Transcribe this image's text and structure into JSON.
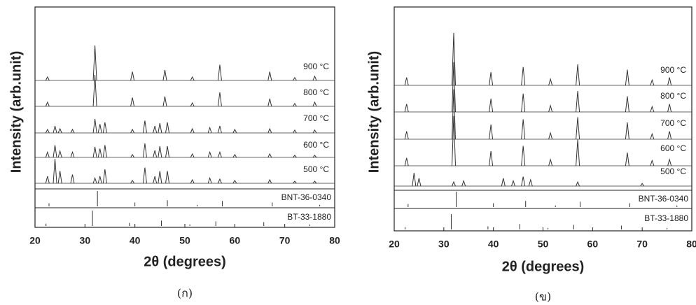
{
  "chart_data": [
    {
      "type": "spectrum",
      "caption": "(ก)",
      "xlabel": "2θ (degrees)",
      "ylabel": "Intensity (arb.unit)",
      "xlim": [
        20,
        80
      ],
      "xticks": [
        20,
        30,
        40,
        50,
        60,
        70,
        80
      ],
      "color": "#333333",
      "series": [
        {
          "name": "900 °C",
          "x": [
            22.5,
            32,
            39.5,
            46,
            51.5,
            57,
            67,
            72,
            76
          ],
          "values": [
            10,
            100,
            25,
            30,
            10,
            45,
            25,
            8,
            12
          ]
        },
        {
          "name": "800 °C",
          "x": [
            22.5,
            32,
            39.5,
            46,
            51.5,
            57,
            67,
            72,
            76
          ],
          "values": [
            12,
            90,
            25,
            28,
            10,
            40,
            22,
            8,
            12
          ]
        },
        {
          "name": "700 °C",
          "x": [
            22.5,
            24,
            25,
            27.5,
            32,
            33,
            34,
            39.5,
            42,
            44,
            45,
            46.5,
            51.5,
            55,
            57,
            60,
            67,
            72,
            76
          ],
          "values": [
            10,
            20,
            12,
            10,
            40,
            25,
            30,
            10,
            35,
            20,
            28,
            30,
            12,
            15,
            20,
            10,
            12,
            8,
            8
          ]
        },
        {
          "name": "600 °C",
          "x": [
            22.5,
            24,
            25,
            27.5,
            32,
            33,
            34,
            39.5,
            42,
            44,
            45,
            46.5,
            51.5,
            55,
            57,
            60,
            67,
            72,
            76
          ],
          "values": [
            15,
            35,
            18,
            15,
            30,
            25,
            35,
            8,
            40,
            20,
            32,
            32,
            10,
            15,
            15,
            8,
            10,
            6,
            6
          ]
        },
        {
          "name": "500 °C",
          "x": [
            22.5,
            24,
            25,
            27.5,
            32,
            33,
            34,
            39.5,
            42,
            44,
            45,
            46.5,
            51.5,
            55,
            57,
            60,
            67,
            72,
            76
          ],
          "values": [
            20,
            70,
            35,
            25,
            15,
            20,
            40,
            8,
            45,
            20,
            35,
            35,
            10,
            15,
            12,
            8,
            10,
            6,
            6
          ]
        }
      ],
      "references": [
        {
          "name": "BNT-36-0340",
          "x": [
            22.8,
            32.5,
            40,
            46.5,
            52.5,
            57.5,
            67.5,
            77
          ],
          "values": [
            20,
            100,
            25,
            40,
            10,
            35,
            25,
            10
          ]
        },
        {
          "name": "BT-33-1880",
          "x": [
            22.2,
            31.5,
            38.9,
            45.3,
            51,
            56.2,
            65.8,
            75
          ],
          "values": [
            15,
            100,
            20,
            35,
            10,
            30,
            25,
            10
          ]
        }
      ]
    },
    {
      "type": "spectrum",
      "caption": "(ข)",
      "xlabel": "2θ (degrees)",
      "ylabel": "Intensity (arb.unit)",
      "xlim": [
        20,
        80
      ],
      "xticks": [
        20,
        30,
        40,
        50,
        60,
        70,
        80
      ],
      "color": "#333333",
      "series": [
        {
          "name": "900 °C",
          "x": [
            22.5,
            32,
            39.5,
            46,
            51.5,
            57,
            67,
            72,
            75.5
          ],
          "values": [
            15,
            100,
            25,
            35,
            12,
            40,
            30,
            10,
            15
          ]
        },
        {
          "name": "800 °C",
          "x": [
            22.5,
            32,
            39.5,
            46,
            51.5,
            57,
            67,
            72,
            75.5
          ],
          "values": [
            15,
            95,
            25,
            35,
            12,
            40,
            30,
            10,
            15
          ]
        },
        {
          "name": "700 °C",
          "x": [
            22.5,
            32,
            39.5,
            46,
            51.5,
            57,
            67,
            72,
            75.5
          ],
          "values": [
            15,
            95,
            28,
            38,
            12,
            42,
            32,
            10,
            15
          ]
        },
        {
          "name": "600 °C",
          "x": [
            22.5,
            32,
            39.5,
            46,
            51.5,
            57,
            67,
            72,
            75.5
          ],
          "values": [
            15,
            95,
            28,
            38,
            12,
            50,
            25,
            10,
            12
          ]
        },
        {
          "name": "500 °C",
          "x": [
            24,
            25,
            32,
            34,
            42,
            44,
            46,
            47.5,
            57,
            70
          ],
          "values": [
            25,
            15,
            8,
            10,
            15,
            10,
            18,
            12,
            8,
            5
          ]
        }
      ],
      "references": [
        {
          "name": "BNT-36-0340",
          "x": [
            22.8,
            32.5,
            40,
            46.5,
            52.5,
            57.5,
            67.5,
            77
          ],
          "values": [
            20,
            100,
            25,
            40,
            10,
            35,
            25,
            10
          ]
        },
        {
          "name": "BT-33-1880",
          "x": [
            22.2,
            31.5,
            38.9,
            45.3,
            51,
            56.2,
            65.8,
            75
          ],
          "values": [
            15,
            100,
            20,
            35,
            10,
            30,
            25,
            10
          ]
        }
      ]
    }
  ]
}
